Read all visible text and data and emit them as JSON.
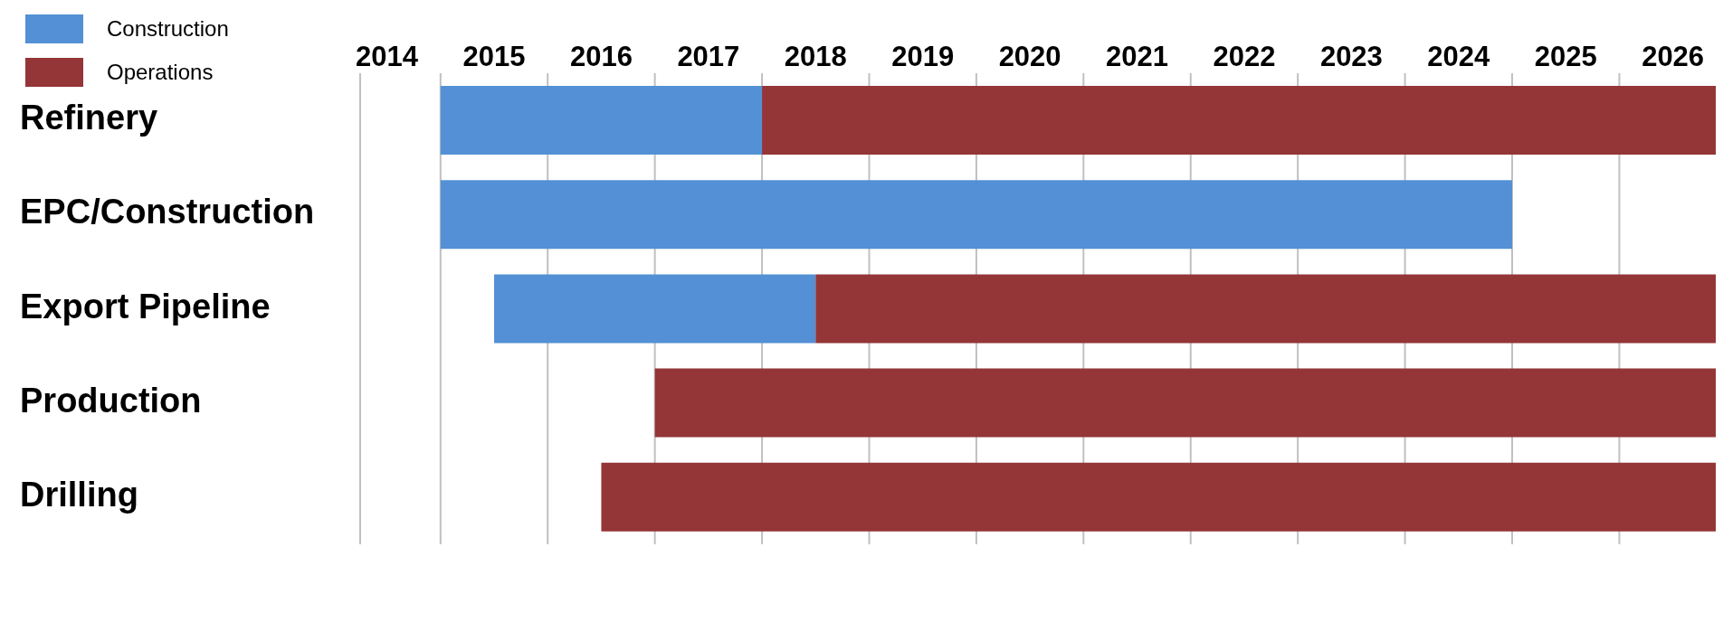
{
  "chart_data": {
    "type": "bar",
    "orientation": "horizontal",
    "categories": [
      "Refinery",
      "EPC/Construction",
      "Export Pipeline",
      "Production",
      "Drilling"
    ],
    "series": [
      {
        "name": "Construction",
        "color": "#5390d5",
        "base": [
          2015,
          2015,
          2015.5,
          null,
          null
        ],
        "values": [
          3,
          10,
          3,
          null,
          null
        ]
      },
      {
        "name": "Operations",
        "color": "#943537",
        "base": [
          2018,
          null,
          2018.5,
          2017,
          2016.5
        ],
        "values": [
          8.9,
          null,
          8.4,
          9.9,
          10.4
        ]
      }
    ],
    "xlim": [
      2014.25,
      2026.9
    ],
    "xticks": [
      {
        "value": 2014.25,
        "label": null
      },
      {
        "value": 2014.5,
        "label": "2014"
      },
      {
        "value": 2015,
        "label": null
      },
      {
        "value": 2015.5,
        "label": "2015"
      },
      {
        "value": 2016,
        "label": null
      },
      {
        "value": 2016.5,
        "label": "2016"
      },
      {
        "value": 2017,
        "label": null
      },
      {
        "value": 2017.5,
        "label": "2017"
      },
      {
        "value": 2018,
        "label": null
      },
      {
        "value": 2018.5,
        "label": "2018"
      },
      {
        "value": 2019,
        "label": null
      },
      {
        "value": 2019.5,
        "label": "2019"
      },
      {
        "value": 2020,
        "label": null
      },
      {
        "value": 2020.5,
        "label": "2020"
      },
      {
        "value": 2021,
        "label": null
      },
      {
        "value": 2021.5,
        "label": "2021"
      },
      {
        "value": 2022,
        "label": null
      },
      {
        "value": 2022.5,
        "label": "2022"
      },
      {
        "value": 2023,
        "label": null
      },
      {
        "value": 2023.5,
        "label": "2023"
      },
      {
        "value": 2024,
        "label": null
      },
      {
        "value": 2024.5,
        "label": "2024"
      },
      {
        "value": 2025,
        "label": null
      },
      {
        "value": 2025.5,
        "label": "2025"
      },
      {
        "value": 2026,
        "label": null
      },
      {
        "value": 2026.5,
        "label": "2026"
      }
    ],
    "grid": "x",
    "legend": "top left"
  }
}
